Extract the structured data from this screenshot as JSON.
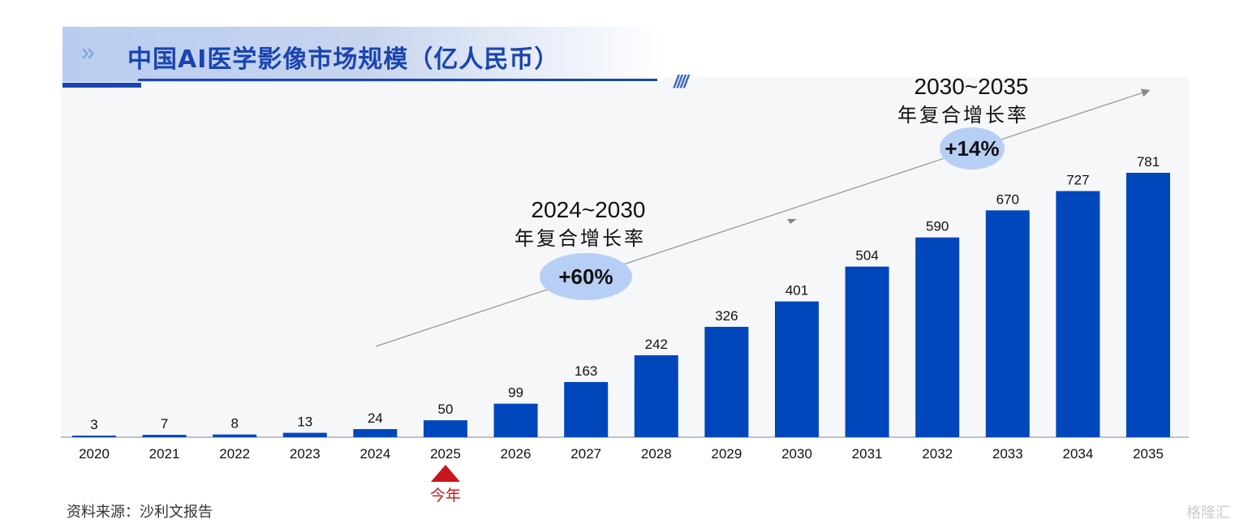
{
  "header": {
    "title": "中国AI医学影像市场规模（亿人民币）"
  },
  "chart_data": {
    "type": "bar",
    "title": "中国AI医学影像市场规模（亿人民币）",
    "categories": [
      "2020",
      "2021",
      "2022",
      "2023",
      "2024",
      "2025",
      "2026",
      "2027",
      "2028",
      "2029",
      "2030",
      "2031",
      "2032",
      "2033",
      "2034",
      "2035"
    ],
    "values": [
      3,
      7,
      8,
      13,
      24,
      50,
      99,
      163,
      242,
      326,
      401,
      504,
      590,
      670,
      727,
      781
    ],
    "bar_color": "#0047bb",
    "ylim": [
      0,
      781
    ],
    "grid": false,
    "annotations": [
      {
        "period": "2024~2030",
        "label": "年复合增长率",
        "value": "+60%"
      },
      {
        "period": "2030~2035",
        "label": "年复合增长率",
        "value": "+14%"
      }
    ],
    "marker": {
      "category": "2025",
      "label": "今年",
      "color": "#c8161d"
    }
  },
  "footer": {
    "source": "资料来源：沙利文报告",
    "watermark": "格隆汇"
  }
}
